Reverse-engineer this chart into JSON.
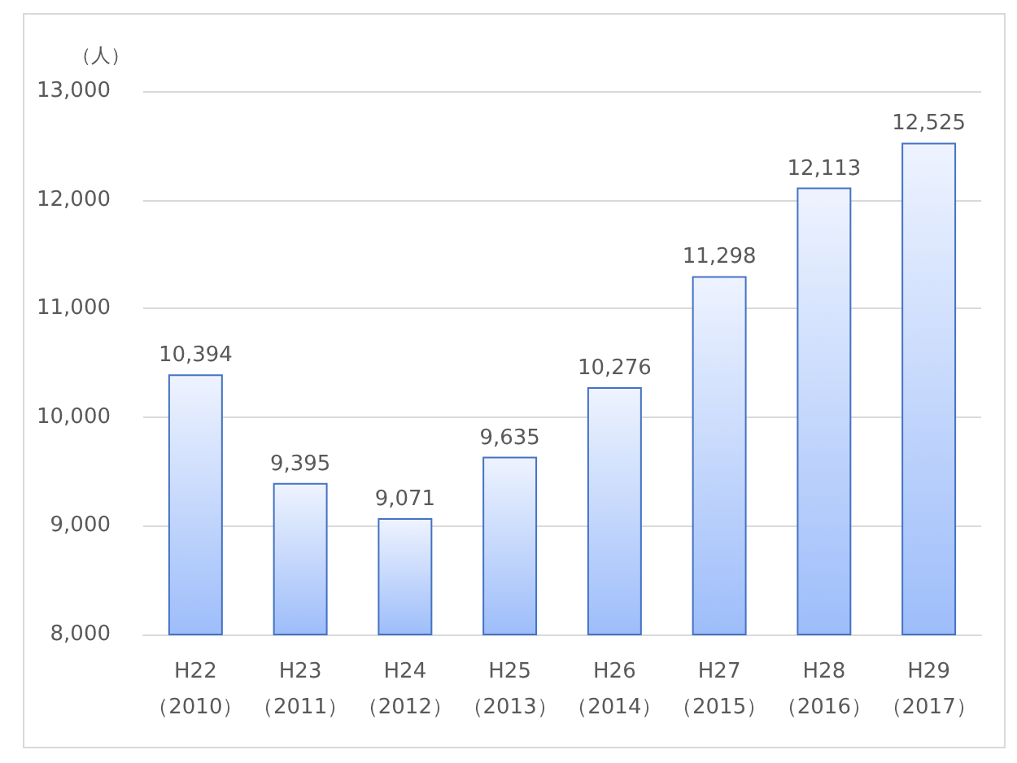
{
  "chart_data": {
    "type": "bar",
    "ylabel": "（人）",
    "categories": [
      "H22\n（2010）",
      "H23\n（2011）",
      "H24\n（2012）",
      "H25\n（2013）",
      "H26\n（2014）",
      "H27\n（2015）",
      "H28\n（2016）",
      "H29\n（2017）"
    ],
    "values": [
      10394,
      9395,
      9071,
      9635,
      10276,
      11298,
      12113,
      12525
    ],
    "value_labels": [
      "10,394",
      "9,395",
      "9,071",
      "9,635",
      "10,276",
      "11,298",
      "12,113",
      "12,525"
    ],
    "color": "#4472c4",
    "ylim": [
      8000,
      13000
    ],
    "yticks": [
      {
        "value": 8000,
        "label": "8,000"
      },
      {
        "value": 9000,
        "label": "9,000"
      },
      {
        "value": 10000,
        "label": "10,000"
      },
      {
        "value": 11000,
        "label": "11,000"
      },
      {
        "value": 12000,
        "label": "12,000"
      },
      {
        "value": 13000,
        "label": "13,000"
      }
    ],
    "grid": "y"
  }
}
